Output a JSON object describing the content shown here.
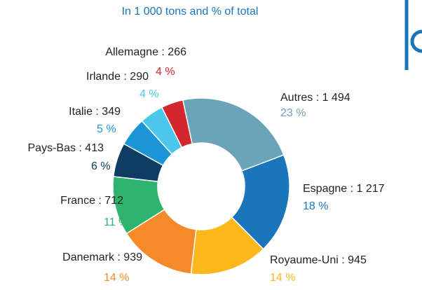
{
  "chart_data": {
    "type": "donut",
    "title": "In 1 000 tons and % of total",
    "categories": [
      "Autres",
      "Espagne",
      "Royaume-Uni",
      "Danemark",
      "France",
      "Pays-Bas",
      "Italie",
      "Irlande",
      "Allemagne"
    ],
    "values": [
      1494,
      1217,
      945,
      939,
      712,
      413,
      349,
      290,
      266
    ],
    "value_labels": [
      "Autres : 1 494",
      "Espagne : 1 217",
      "Royaume-Uni : 945",
      "Danemark : 939",
      "France : 712",
      "Pays-Bas : 413",
      "Italie : 349",
      "Irlande : 290",
      "Allemagne : 266"
    ],
    "percent_values": [
      23,
      18,
      14,
      14,
      11,
      6,
      5,
      4,
      4
    ],
    "percent_labels": [
      "23 %",
      "18 %",
      "14 %",
      "14 %",
      "11 %",
      "6 %",
      "5 %",
      "4 %",
      "4 %"
    ],
    "colors": [
      "#6ba3b8",
      "#1a75bb",
      "#fbb81a",
      "#f58a2a",
      "#2eb46e",
      "#0d3d63",
      "#1b95d6",
      "#4cc8ec",
      "#d4262e"
    ]
  }
}
